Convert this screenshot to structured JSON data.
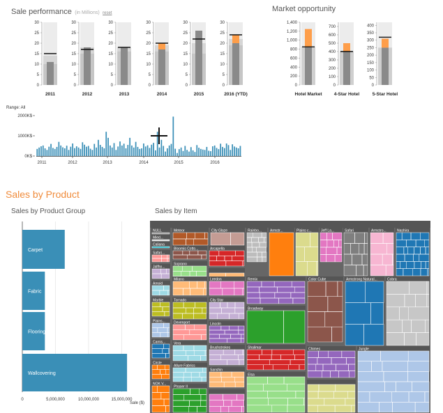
{
  "sale_performance": {
    "title": "Sale performance",
    "subtitle": "(in Millions)",
    "reset": "reset"
  },
  "market_opportunity": {
    "title": "Market opportunity"
  },
  "range": {
    "label": "Range: All"
  },
  "sales_by_product": {
    "title": "Sales by Product",
    "group_title": "Sales by Product Group",
    "item_title": "Sales by Item"
  },
  "colors": {
    "bar_blue": "#3a8fb7",
    "orange": "#fe9e4a",
    "grey": "#8a8a8a"
  },
  "chart_data": [
    {
      "type": "bar",
      "name": "sale-performance-bullets",
      "categories": [
        "2011",
        "2012",
        "2013",
        "2014",
        "2015",
        "2016 (YTD)"
      ],
      "ranges": [
        [
          10,
          14,
          30
        ],
        [
          15,
          18,
          30
        ],
        [
          16,
          18,
          30
        ],
        [
          16,
          19,
          30
        ],
        [
          15,
          20,
          30
        ],
        [
          19,
          22,
          30
        ]
      ],
      "actual": [
        11,
        18,
        18,
        17,
        26,
        20
      ],
      "current": [
        0,
        0,
        0,
        3,
        0,
        4
      ],
      "target": [
        15,
        17,
        18,
        20,
        22,
        24
      ],
      "yticks": [
        0,
        5,
        10,
        15,
        20,
        25,
        30
      ],
      "ylim": [
        0,
        30
      ]
    },
    {
      "type": "bar",
      "name": "market-opportunity-bullets",
      "categories": [
        "Hotel Market",
        "4-Star Hotel",
        "5-Star Hotel"
      ],
      "charts": [
        {
          "ylim": [
            0,
            1400
          ],
          "yticks": [
            0,
            200,
            400,
            600,
            800,
            1000,
            1200,
            1400
          ],
          "ytick_labels": [
            "0",
            "200",
            "400",
            "600",
            "800",
            "1,000",
            "1,200",
            "1,400"
          ],
          "base": 850,
          "orange_top": 1250,
          "target": 850
        },
        {
          "ylim": [
            0,
            750
          ],
          "yticks": [
            0,
            100,
            200,
            300,
            400,
            500,
            600,
            700
          ],
          "ytick_labels": [
            "0",
            "100",
            "200",
            "300",
            "400",
            "500",
            "600",
            "700"
          ],
          "base": 400,
          "orange_top": 500,
          "target": 400
        },
        {
          "ylim": [
            0,
            420
          ],
          "yticks": [
            0,
            50,
            100,
            150,
            200,
            250,
            300,
            350,
            400
          ],
          "ytick_labels": [
            "0",
            "50",
            "100",
            "150",
            "200",
            "250",
            "300",
            "350",
            "400"
          ],
          "base": 250,
          "orange_top": 310,
          "target": 320
        }
      ]
    },
    {
      "type": "bar",
      "name": "monthly-sales-timeline",
      "xlabels": [
        "2011",
        "2012",
        "2013",
        "2014",
        "2015",
        "2016"
      ],
      "ytick_labels": [
        "0K$",
        "1000K$",
        "2000K$"
      ],
      "ylim": [
        0,
        2000
      ],
      "values": [
        350,
        420,
        480,
        520,
        380,
        300,
        460,
        600,
        400,
        350,
        450,
        700,
        520,
        430,
        380,
        510,
        300,
        460,
        620,
        390,
        480,
        420,
        350,
        680,
        560,
        460,
        500,
        360,
        300,
        600,
        420,
        800,
        550,
        450,
        380,
        1200,
        900,
        520,
        420,
        640,
        300,
        470,
        720,
        520,
        610,
        380,
        550,
        900,
        520,
        420,
        700,
        450,
        350,
        380,
        620,
        470,
        530,
        400,
        560,
        650,
        280,
        1200,
        420,
        800,
        500,
        220,
        380,
        520,
        600,
        1950,
        360,
        150,
        340,
        420,
        250,
        500,
        300,
        220,
        440,
        280,
        200,
        540,
        410,
        350,
        320,
        300,
        450,
        260,
        240,
        480,
        520,
        400,
        340,
        610,
        450,
        390,
        620,
        540,
        300,
        580,
        470,
        420,
        380,
        500
      ]
    },
    {
      "type": "bar",
      "name": "sales-by-product-group",
      "categories": [
        "Carpet",
        "Fabric",
        "Flooring",
        "Wallcovering"
      ],
      "values": [
        6400000,
        3400000,
        3400000,
        15800000
      ],
      "xticks": [
        "0",
        "5,000,000",
        "10,000,000",
        "15,000,000"
      ],
      "xlabel": "Sale ($)",
      "xlim": [
        0,
        16000000
      ]
    },
    {
      "type": "heatmap",
      "name": "sales-by-item-treemap",
      "labels": [
        "NULL",
        "Meteor",
        "City Glaze",
        "Rainbo...",
        "Armstr...",
        "Plains c...",
        "Jeff La...",
        "Safari",
        "Armstro...",
        "Nashira",
        "Mied...",
        "Caliana",
        "Bloomis Cotto...",
        "Safari...",
        "Arcapella",
        "Soprano",
        "Jalfho...",
        "Amoid",
        "Milano",
        "Leedon",
        "Remix",
        "Color Cube",
        "Armstrong Natural...",
        "Cobra",
        "Marble",
        "Tornado",
        "City Star",
        "Plains...",
        "Devenport",
        "Broadway",
        "Lincoln",
        "Camis...",
        "Vera",
        "Shalimar",
        "Chimes",
        "Jungle",
        "Circle",
        "Brushstrokes",
        "Allure Fabrics",
        "Elsa",
        "NOK V...",
        "Phaser II",
        "Sanshin"
      ]
    }
  ]
}
